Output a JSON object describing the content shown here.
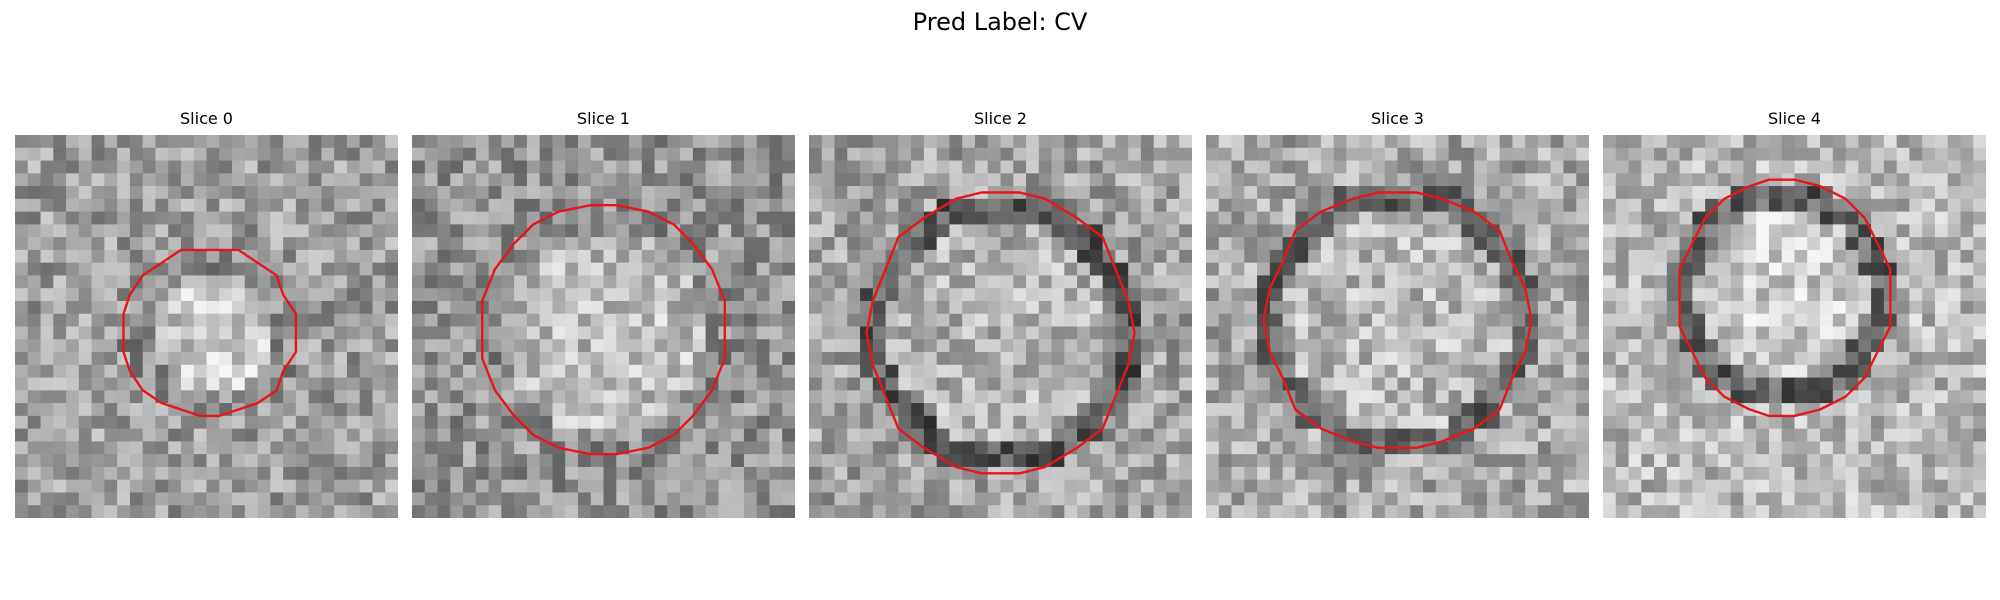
{
  "figure": {
    "title": "Pred Label: CV"
  },
  "panels": [
    {
      "title": "Slice 0"
    },
    {
      "title": "Slice 1"
    },
    {
      "title": "Slice 2"
    },
    {
      "title": "Slice 3"
    },
    {
      "title": "Slice 4"
    }
  ],
  "style": {
    "contour_color": "#e8161a",
    "background": "#ffffff"
  }
}
